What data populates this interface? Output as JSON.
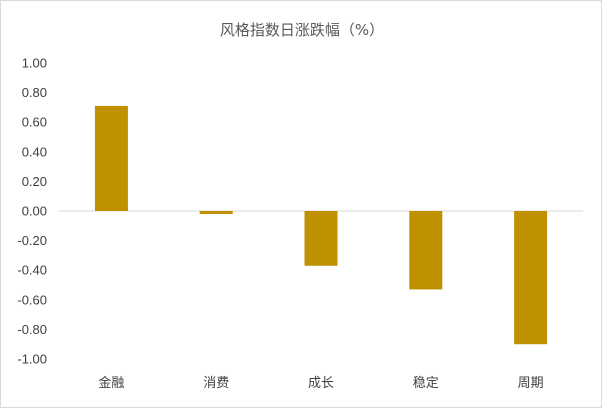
{
  "chart_data": {
    "type": "bar",
    "title": "风格指数日涨跌幅（%）",
    "categories": [
      "金融",
      "消费",
      "成长",
      "稳定",
      "周期"
    ],
    "series": [
      {
        "values": [
          0.71,
          -0.02,
          -0.37,
          -0.53,
          -0.9
        ]
      }
    ],
    "yticks": [
      "1.00",
      "0.80",
      "0.60",
      "0.40",
      "0.20",
      "0.00",
      "-0.20",
      "-0.40",
      "-0.60",
      "-0.80",
      "-1.00"
    ],
    "ylim": [
      -1.0,
      1.0
    ],
    "bar_color": "#bf9000",
    "axis_color": "#d9d9d9",
    "grid": false,
    "legend": "none"
  }
}
